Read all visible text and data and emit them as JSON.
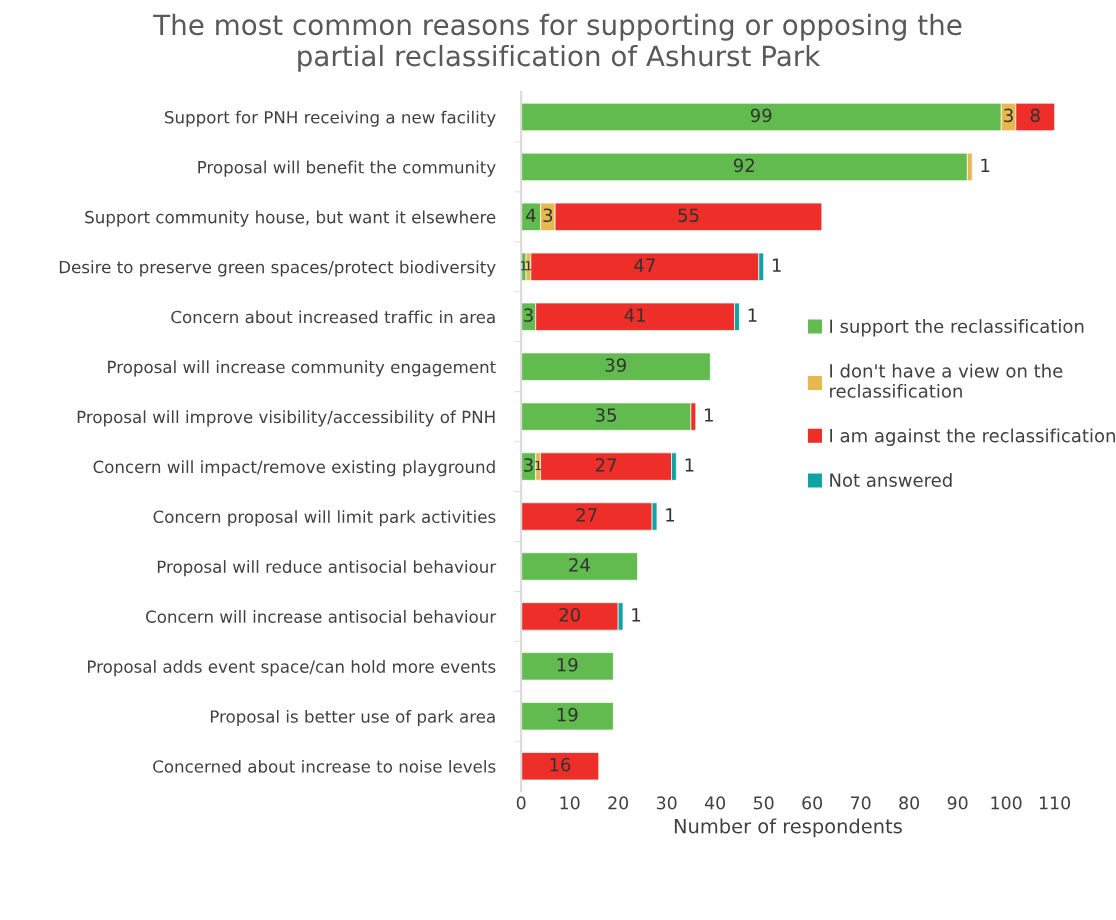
{
  "chart_data": {
    "type": "bar",
    "orientation": "horizontal",
    "stacked": true,
    "title": "The most common reasons for supporting or opposing the\npartial reclassification of Ashurst Park",
    "xlabel": "Number of respondents",
    "categories": [
      "Support for PNH receiving a new facility",
      "Proposal will benefit the community",
      "Support community house, but want it elsewhere",
      "Desire to preserve green spaces/protect biodiversity",
      "Concern about increased traffic in area",
      "Proposal will increase community engagement",
      "Proposal will improve visibility/accessibility of PNH",
      "Concern will impact/remove existing playground",
      "Concern proposal will limit park activities",
      "Proposal will reduce antisocial behaviour",
      "Concern will increase antisocial behaviour",
      "Proposal adds event space/can hold more events",
      "Proposal is better use of park area",
      "Concerned about increase to noise levels"
    ],
    "series": [
      {
        "name": "I support the reclassification",
        "color": "#62bb4f",
        "values": [
          99,
          92,
          4,
          1,
          3,
          39,
          35,
          3,
          null,
          24,
          null,
          19,
          19,
          null
        ]
      },
      {
        "name": "I don't have a view on the\nreclassification",
        "color": "#e8b84f",
        "values": [
          3,
          1,
          3,
          1,
          null,
          null,
          null,
          1,
          null,
          null,
          null,
          null,
          null,
          null
        ]
      },
      {
        "name": "I am against the reclassification",
        "color": "#ee2e29",
        "values": [
          8,
          null,
          55,
          47,
          41,
          null,
          1,
          27,
          27,
          null,
          20,
          null,
          null,
          16
        ]
      },
      {
        "name": "Not answered",
        "color": "#0fa3a3",
        "values": [
          null,
          null,
          null,
          1,
          1,
          null,
          null,
          1,
          1,
          null,
          1,
          null,
          null,
          null
        ]
      }
    ],
    "xlim": [
      0,
      110
    ],
    "xticks": [
      0,
      10,
      20,
      30,
      40,
      50,
      60,
      70,
      80,
      90,
      100,
      110
    ],
    "data_labels": true,
    "legend": "right",
    "grid": false
  }
}
